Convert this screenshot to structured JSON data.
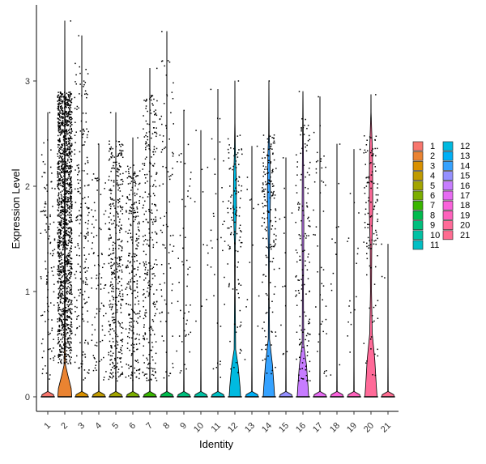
{
  "chart_data": {
    "type": "violin",
    "xlabel": "Identity",
    "ylabel": "Expression Level",
    "categories": [
      "1",
      "2",
      "3",
      "4",
      "5",
      "6",
      "7",
      "8",
      "9",
      "10",
      "11",
      "12",
      "13",
      "14",
      "15",
      "16",
      "17",
      "18",
      "19",
      "20",
      "21"
    ],
    "yticks": [
      0,
      1,
      2,
      3
    ],
    "ylim": [
      -0.15,
      3.65
    ],
    "legend_position": "right",
    "legend_columns": 2,
    "show_points": true,
    "grid": false,
    "colors": [
      "#F8766D",
      "#EA8331",
      "#D89000",
      "#C09B00",
      "#A3A500",
      "#7CAE00",
      "#39B600",
      "#00BB4E",
      "#00BF7D",
      "#00C1A3",
      "#00BFC4",
      "#00BAE0",
      "#00B0F6",
      "#35A2FF",
      "#9590FF",
      "#C77CFF",
      "#E76BF3",
      "#FA62DB",
      "#FF62BC",
      "#FF6A98",
      "#FF6C91"
    ],
    "series": [
      {
        "name": "1",
        "max": 2.7,
        "n_points": 110
      },
      {
        "name": "2",
        "max": 3.57,
        "n_points": 1500
      },
      {
        "name": "3",
        "max": 3.43,
        "n_points": 200
      },
      {
        "name": "4",
        "max": 2.4,
        "n_points": 90
      },
      {
        "name": "5",
        "max": 2.7,
        "n_points": 380
      },
      {
        "name": "6",
        "max": 2.46,
        "n_points": 260
      },
      {
        "name": "7",
        "max": 3.12,
        "n_points": 280
      },
      {
        "name": "8",
        "max": 3.47,
        "n_points": 90
      },
      {
        "name": "9",
        "max": 2.72,
        "n_points": 50
      },
      {
        "name": "10",
        "max": 2.53,
        "n_points": 12
      },
      {
        "name": "11",
        "max": 2.92,
        "n_points": 35
      },
      {
        "name": "12",
        "max": 3.0,
        "n_points": 120
      },
      {
        "name": "13",
        "max": 2.38,
        "n_points": 14
      },
      {
        "name": "14",
        "max": 3.0,
        "n_points": 170
      },
      {
        "name": "15",
        "max": 2.27,
        "n_points": 15
      },
      {
        "name": "16",
        "max": 2.9,
        "n_points": 150
      },
      {
        "name": "17",
        "max": 2.85,
        "n_points": 45
      },
      {
        "name": "18",
        "max": 2.4,
        "n_points": 12
      },
      {
        "name": "19",
        "max": 2.35,
        "n_points": 18
      },
      {
        "name": "20",
        "max": 2.87,
        "n_points": 120
      },
      {
        "name": "21",
        "max": 1.45,
        "n_points": 3
      }
    ]
  }
}
